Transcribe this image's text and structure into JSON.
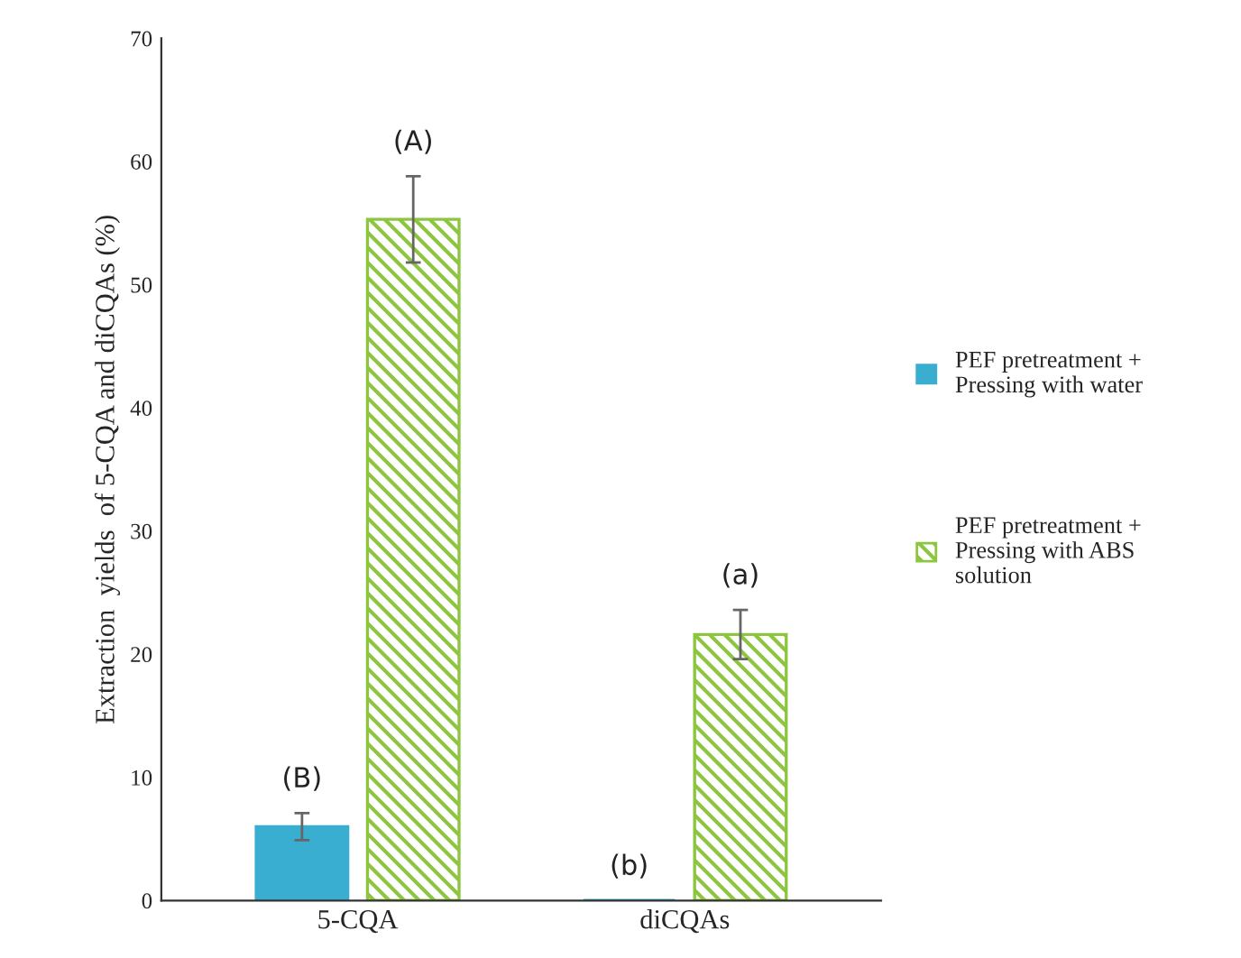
{
  "chart_data": {
    "type": "bar",
    "ylabel": "Extraction  yields  of 5-CQA and diCQAs (%)",
    "categories": [
      "5-CQA",
      "diCQAs"
    ],
    "series": [
      {
        "name": "PEF pretreatment + Pressing with water",
        "color": "#3aaed0",
        "values": [
          6,
          0
        ],
        "errors": [
          1.1,
          null
        ]
      },
      {
        "name": "PEF pretreatment + Pressing with ABS solution",
        "color": "#8cc63f",
        "values": [
          55.3,
          21.6
        ],
        "errors": [
          3.5,
          2
        ]
      }
    ],
    "ylim": [
      0,
      70
    ],
    "yticks": [
      0,
      10,
      20,
      30,
      40,
      50,
      60,
      70
    ],
    "legend": "right",
    "grid": false,
    "annotations": [
      "(B)",
      "(A)",
      "(b)",
      "(a)"
    ]
  }
}
